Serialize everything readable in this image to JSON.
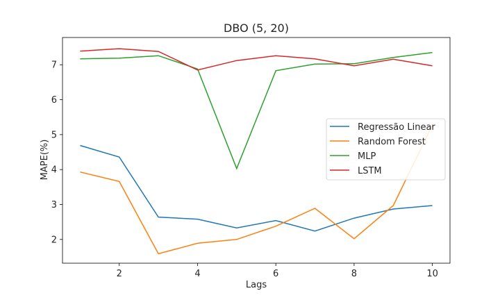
{
  "chart_data": {
    "type": "line",
    "title": "DBO (5, 20)",
    "xlabel": "Lags",
    "ylabel": "MAPE(%)",
    "x": [
      1,
      2,
      3,
      4,
      5,
      6,
      7,
      8,
      9,
      10
    ],
    "xlim": [
      0.55,
      10.45
    ],
    "ylim": [
      1.32,
      7.78
    ],
    "xticks": [
      2,
      4,
      6,
      8,
      10
    ],
    "yticks": [
      2,
      3,
      4,
      5,
      6,
      7
    ],
    "legend_position": "center-right",
    "grid": false,
    "series": [
      {
        "name": "Regressão Linear",
        "color": "#1f77b4",
        "values": [
          4.69,
          4.36,
          2.64,
          2.58,
          2.33,
          2.54,
          2.24,
          2.61,
          2.87,
          2.97
        ]
      },
      {
        "name": "Random Forest",
        "color": "#ff7f0e",
        "values": [
          3.93,
          3.66,
          1.59,
          1.89,
          2.0,
          2.38,
          2.89,
          2.02,
          2.97,
          5.27
        ]
      },
      {
        "name": "MLP",
        "color": "#2ca02c",
        "values": [
          7.17,
          7.19,
          7.26,
          6.88,
          4.03,
          6.83,
          7.02,
          7.03,
          7.21,
          7.35
        ]
      },
      {
        "name": "LSTM",
        "color": "#d62728",
        "values": [
          7.39,
          7.46,
          7.38,
          6.85,
          7.12,
          7.26,
          7.17,
          6.97,
          7.16,
          6.97
        ]
      }
    ]
  }
}
